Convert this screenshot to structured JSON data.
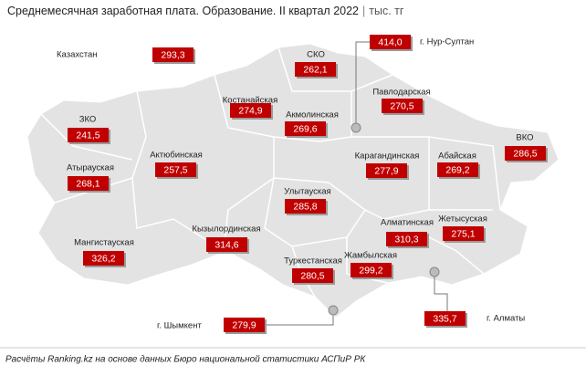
{
  "title": "Среднемесячная заработная плата. Образование. II квартал 2022",
  "unit": "тыс. тг",
  "regions": [
    {
      "name": "Казахстан",
      "value": "293,3"
    },
    {
      "name": "СКО",
      "value": "262,1"
    },
    {
      "name": "г. Нур-Султан",
      "value": "414,0"
    },
    {
      "name": "Костанайская",
      "value": "274,9"
    },
    {
      "name": "Павлодарская",
      "value": "270,5"
    },
    {
      "name": "Акмолинская",
      "value": "269,6"
    },
    {
      "name": "ЗКО",
      "value": "241,5"
    },
    {
      "name": "ВКО",
      "value": "286,5"
    },
    {
      "name": "Атырауская",
      "value": "268,1"
    },
    {
      "name": "Актюбинская",
      "value": "257,5"
    },
    {
      "name": "Карагандинская",
      "value": "277,9"
    },
    {
      "name": "Абайская",
      "value": "269,2"
    },
    {
      "name": "Улытауская",
      "value": "285,8"
    },
    {
      "name": "Алматинская",
      "value": "310,3"
    },
    {
      "name": "Жетысуская",
      "value": "275,1"
    },
    {
      "name": "Кызылординская",
      "value": "314,6"
    },
    {
      "name": "Мангистауская",
      "value": "326,2"
    },
    {
      "name": "Туркестанская",
      "value": "280,5"
    },
    {
      "name": "Жамбылская",
      "value": "299,2"
    },
    {
      "name": "г. Шымкент",
      "value": "279,9"
    },
    {
      "name": "г. Алматы",
      "value": "335,7"
    }
  ],
  "source": "Расчёты Ranking.kz на основе данных Бюро национальной статистики АСПиР РК"
}
